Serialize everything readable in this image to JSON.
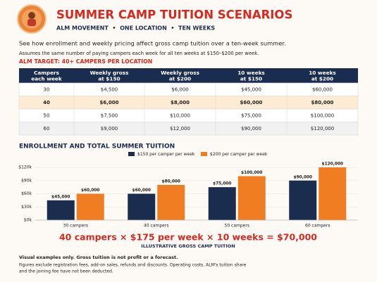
{
  "header": {
    "title": "SUMMER CAMP TUITION SCENARIOS",
    "subtitle": "ALM MOVEMENT  •  ONE LOCATION  •  TEN WEEKS"
  },
  "intro": "See how enrollment and weekly pricing affect gross camp tuition over a ten-week summer.",
  "assumption": "Assumes the same number of paying campers each week for all ten weeks at $150–$200 per week.",
  "target": "ALM TARGET: 40+ CAMPERS PER LOCATION",
  "table": {
    "columns": [
      [
        "Campers",
        "each week"
      ],
      [
        "Weekly gross",
        "at $150"
      ],
      [
        "Weekly gross",
        "at $200"
      ],
      [
        "10 weeks",
        "at $150"
      ],
      [
        "10 weeks",
        "at $200"
      ]
    ],
    "rows": [
      [
        "30",
        "$4,500",
        "$6,000",
        "$45,000",
        "$60,000"
      ],
      [
        "40",
        "$6,000",
        "$8,000",
        "$60,000",
        "$80,000"
      ],
      [
        "50",
        "$7,500",
        "$10,000",
        "$75,000",
        "$100,000"
      ],
      [
        "60",
        "$9,000",
        "$12,000",
        "$90,000",
        "$120,000"
      ]
    ]
  },
  "chart_data": {
    "type": "bar",
    "title": "ENROLLMENT AND TOTAL SUMMER TUITION",
    "categories": [
      "30 campers",
      "40 campers",
      "50 campers",
      "60 campers"
    ],
    "series": [
      {
        "name": "$150 per camper per week",
        "color": "#1b2d4f",
        "values": [
          45000,
          60000,
          75000,
          90000
        ],
        "value_labels": [
          "$45,000",
          "$60,000",
          "$75,000",
          "$90,000"
        ]
      },
      {
        "name": "$200 per camper per week",
        "color": "#f07d22",
        "values": [
          60000,
          80000,
          100000,
          120000
        ],
        "value_labels": [
          "$60,000",
          "$80,000",
          "$100,000",
          "$120,000"
        ]
      }
    ],
    "ylim": [
      0,
      120000
    ],
    "yticks": [
      {
        "value": 0,
        "label": "$0k"
      },
      {
        "value": 30000,
        "label": "$30k"
      },
      {
        "value": 60000,
        "label": "$60k"
      },
      {
        "value": 90000,
        "label": "$90k"
      },
      {
        "value": 120000,
        "label": "$120k"
      }
    ],
    "grid": true
  },
  "formula": "40 campers × $175 per week × 10 weeks = $70,000",
  "formula_caption": "ILLUSTRATIVE GROSS CAMP TUITION",
  "footnote_bold": "Visual examples only. Gross tuition is not profit or a forecast.",
  "footnote_lines": [
    "Figures exclude registration fees, add-on sales, refunds and discounts. Operating costs, ALM's tuition share",
    "and the joining fee have not been deducted."
  ]
}
